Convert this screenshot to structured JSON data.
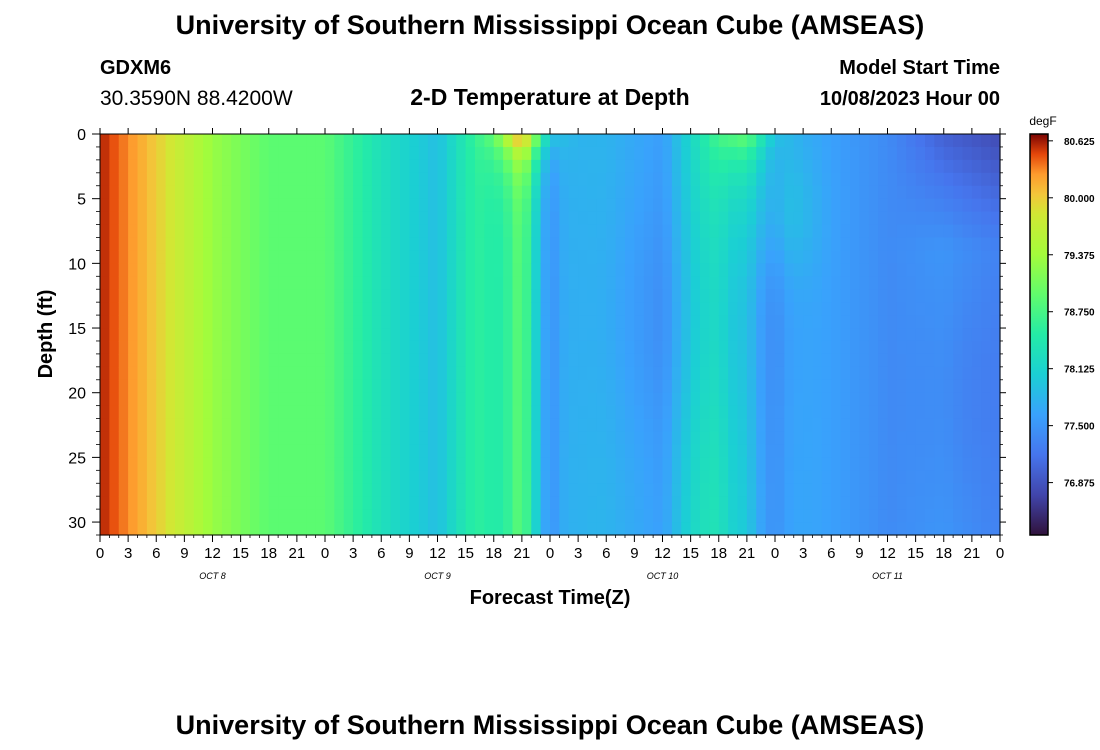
{
  "header": {
    "title": "University of Southern Mississippi Ocean Cube (AMSEAS)",
    "station": "GDXM6",
    "coords": "30.3590N  88.4200W",
    "start_label": "Model Start Time",
    "start_value": "10/08/2023 Hour 00"
  },
  "footer": {
    "title": "University of Southern Mississippi Ocean Cube (AMSEAS)"
  },
  "chart_data": {
    "type": "heatmap",
    "title": "2-D Temperature at Depth",
    "xlabel": "Forecast Time(Z)",
    "ylabel": "Depth (ft)",
    "x_unit_hours_per_step": 3,
    "x_tick_labels": [
      "0",
      "3",
      "6",
      "9",
      "12",
      "15",
      "18",
      "21",
      "0",
      "3",
      "6",
      "9",
      "12",
      "15",
      "18",
      "21",
      "0",
      "3",
      "6",
      "9",
      "12",
      "15",
      "18",
      "21",
      "0",
      "3",
      "6",
      "9",
      "12",
      "15",
      "18",
      "21",
      "0"
    ],
    "day_labels": [
      "OCT 8",
      "OCT 9",
      "OCT 10",
      "OCT 11"
    ],
    "y_ticks": [
      0,
      5,
      10,
      15,
      20,
      25,
      30
    ],
    "ylim": [
      0,
      31
    ],
    "y_inverted": true,
    "colorbar": {
      "unit": "degF",
      "ticks": [
        80.625,
        80.0,
        79.375,
        78.75,
        78.125,
        77.5,
        76.875
      ],
      "tick_labels": [
        "80.625",
        "80.000",
        "79.375",
        "78.750",
        "78.125",
        "77.500",
        "76.875"
      ],
      "range": [
        76.3,
        80.7
      ]
    },
    "surface_temperature_by_hour": {
      "hours": [
        0,
        6,
        12,
        18,
        24,
        30,
        36,
        42,
        45,
        48,
        51,
        54,
        60,
        66,
        69,
        72,
        75,
        78,
        84,
        90,
        93,
        96
      ],
      "values": [
        80.6,
        80.0,
        79.3,
        78.9,
        78.9,
        78.3,
        77.9,
        79.0,
        80.5,
        78.0,
        77.8,
        77.8,
        77.6,
        78.8,
        79.0,
        77.9,
        77.7,
        77.6,
        77.4,
        77.0,
        76.9,
        76.8
      ]
    }
  }
}
